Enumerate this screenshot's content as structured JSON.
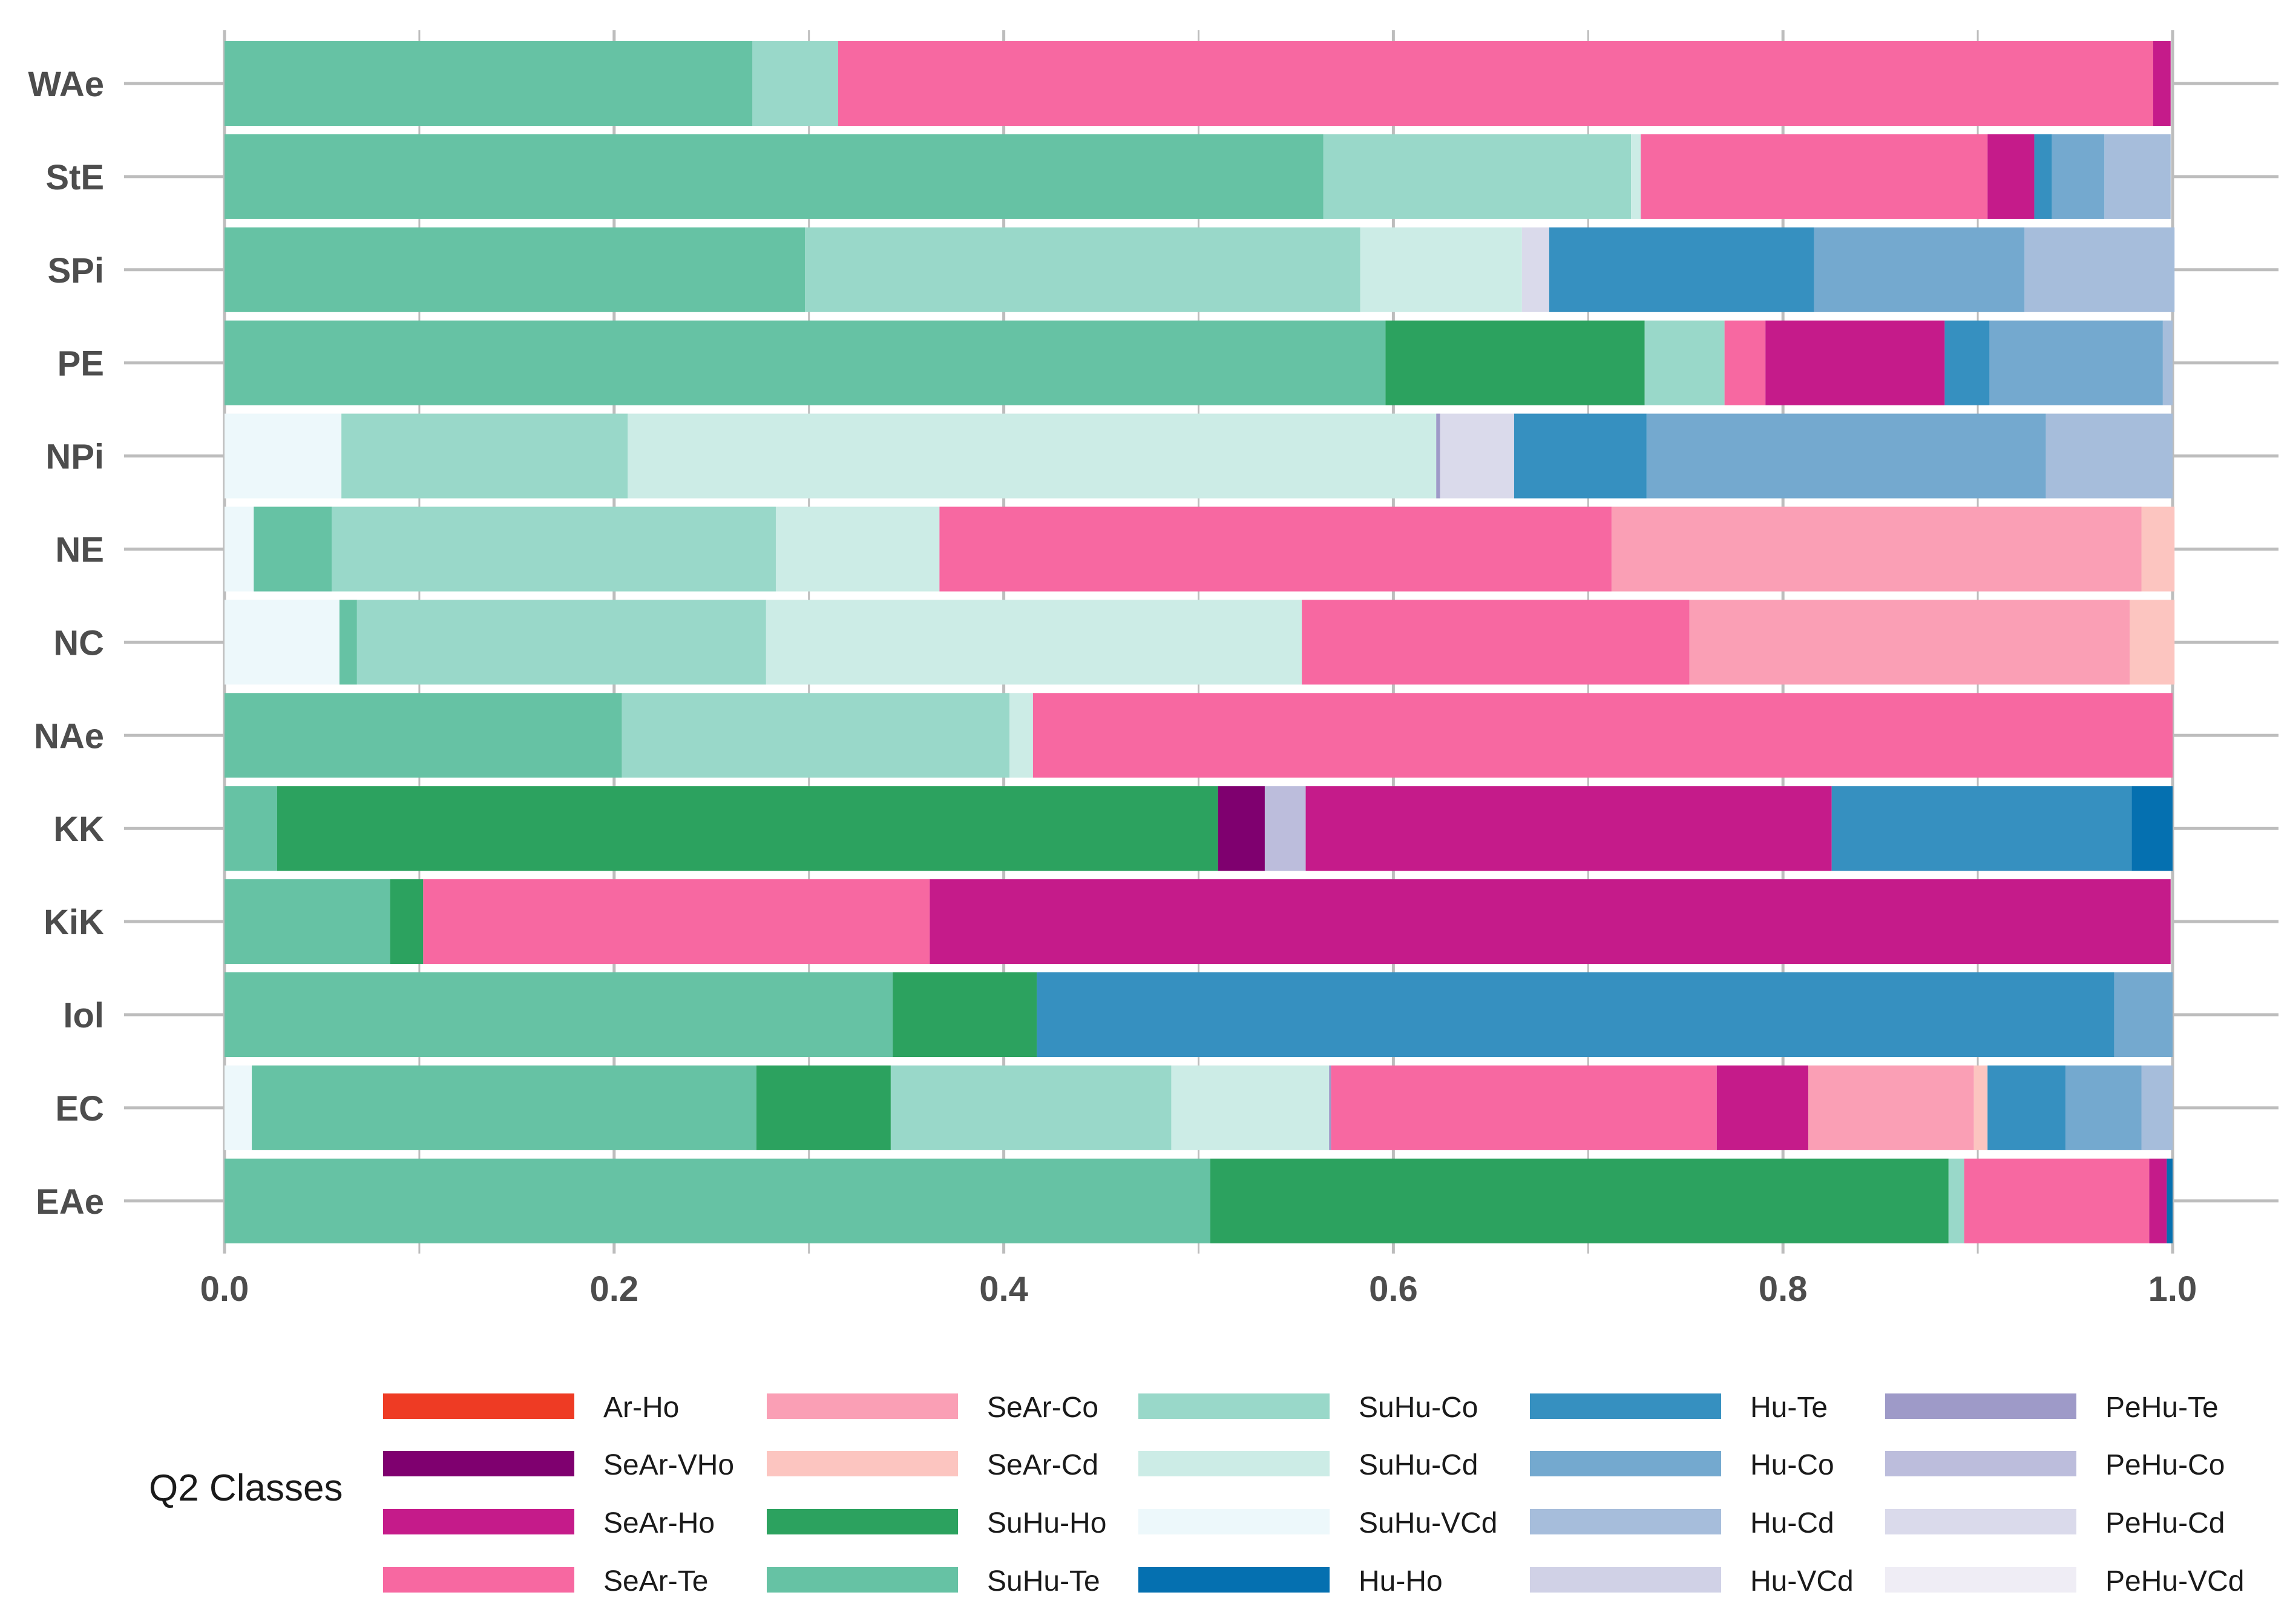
{
  "chart_data": {
    "type": "bar",
    "orientation": "horizontal",
    "stacked": "proportion",
    "categories": [
      "WAe",
      "StE",
      "SPi",
      "PE",
      "NPi",
      "NE",
      "NC",
      "NAe",
      "KK",
      "KiK",
      "Iol",
      "EC",
      "EAe"
    ],
    "xlim": [
      0,
      1
    ],
    "x_ticks": [
      "0.0",
      "0.2",
      "0.4",
      "0.6",
      "0.8",
      "1.0"
    ],
    "grid": "vertical major and minor",
    "legend": {
      "title": "Q2 Classes",
      "position": "bottom"
    },
    "series": [
      {
        "name": "Ar-Ho",
        "color": "#ee3b24",
        "values": [
          0,
          0,
          0,
          0,
          0,
          0,
          0,
          0,
          0,
          0,
          0,
          0,
          0
        ]
      },
      {
        "name": "SeAr-VHo",
        "color": "#7f006f",
        "values": [
          0,
          0,
          0,
          0,
          0,
          0,
          0,
          0,
          0.024,
          0,
          0,
          0,
          0
        ]
      },
      {
        "name": "SeAr-Ho",
        "color": "#c51b8a",
        "values": [
          0.009,
          0.024,
          0,
          0.092,
          0,
          0,
          0,
          0,
          0.27,
          0.637,
          0,
          0.047,
          0.009
        ]
      },
      {
        "name": "SeAr-Te",
        "color": "#f768a1",
        "values": [
          0.675,
          0.178,
          0,
          0.021,
          0,
          0.345,
          0.199,
          0.585,
          0,
          0.26,
          0,
          0.198,
          0.095
        ]
      },
      {
        "name": "SeAr-Co",
        "color": "#fa9fb5",
        "values": [
          0,
          0,
          0,
          0,
          0,
          0.272,
          0.226,
          0,
          0,
          0,
          0,
          0.085,
          0
        ]
      },
      {
        "name": "SeAr-Cd",
        "color": "#fcc5c0",
        "values": [
          0,
          0,
          0,
          0,
          0,
          0.017,
          0.023,
          0,
          0,
          0,
          0,
          0.007,
          0
        ]
      },
      {
        "name": "SuHu-Ho",
        "color": "#2ca25f",
        "values": [
          0,
          0,
          0,
          0.133,
          0,
          0,
          0,
          0,
          0.483,
          0.017,
          0.074,
          0.069,
          0.379
        ]
      },
      {
        "name": "SuHu-Te",
        "color": "#66c2a4",
        "values": [
          0.271,
          0.564,
          0.298,
          0.596,
          0,
          0.04,
          0.009,
          0.204,
          0.027,
          0.085,
          0.343,
          0.259,
          0.506
        ]
      },
      {
        "name": "SuHu-Co",
        "color": "#99d8c9",
        "values": [
          0.044,
          0.158,
          0.285,
          0.041,
          0.147,
          0.228,
          0.21,
          0.199,
          0,
          0,
          0,
          0.144,
          0.008
        ]
      },
      {
        "name": "SuHu-Cd",
        "color": "#ccece6",
        "values": [
          0,
          0.005,
          0.083,
          0,
          0.415,
          0.084,
          0.275,
          0.012,
          0,
          0,
          0,
          0.081,
          0
        ]
      },
      {
        "name": "SuHu-VCd",
        "color": "#edf8fb",
        "values": [
          0,
          0,
          0,
          0,
          0.06,
          0.015,
          0.059,
          0,
          0,
          0,
          0,
          0.014,
          0
        ]
      },
      {
        "name": "Hu-Ho",
        "color": "#0570b0",
        "values": [
          0,
          0,
          0,
          0,
          0,
          0,
          0,
          0,
          0.021,
          0,
          0,
          0,
          0.003
        ]
      },
      {
        "name": "Hu-Te",
        "color": "#3690c0",
        "values": [
          0,
          0.009,
          0.136,
          0.023,
          0.068,
          0,
          0,
          0,
          0.154,
          0,
          0.553,
          0.04,
          0
        ]
      },
      {
        "name": "Hu-Co",
        "color": "#74a9cf",
        "values": [
          0,
          0.027,
          0.108,
          0.089,
          0.205,
          0,
          0,
          0,
          0,
          0,
          0.03,
          0.039,
          0
        ]
      },
      {
        "name": "Hu-Cd",
        "color": "#a6bddb",
        "values": [
          0,
          0.034,
          0.077,
          0.005,
          0.065,
          0,
          0,
          0,
          0,
          0,
          0,
          0.016,
          0
        ]
      },
      {
        "name": "Hu-VCd",
        "color": "#d0d1e6",
        "values": [
          0,
          0,
          0,
          0,
          0,
          0,
          0,
          0,
          0,
          0,
          0,
          0,
          0
        ]
      },
      {
        "name": "PeHu-Te",
        "color": "#9e9ac8",
        "values": [
          0,
          0,
          0,
          0,
          0.002,
          0,
          0,
          0,
          0,
          0,
          0,
          0.001,
          0
        ]
      },
      {
        "name": "PeHu-Co",
        "color": "#bcbddc",
        "values": [
          0,
          0,
          0,
          0,
          0,
          0,
          0,
          0,
          0.021,
          0,
          0,
          0,
          0
        ]
      },
      {
        "name": "PeHu-Cd",
        "color": "#dadaeb",
        "values": [
          0,
          0,
          0.014,
          0,
          0.038,
          0,
          0,
          0,
          0,
          0,
          0,
          0,
          0
        ]
      },
      {
        "name": "PeHu-VCd",
        "color": "#efedf5",
        "values": [
          0,
          0,
          0,
          0,
          0,
          0,
          0,
          0,
          0,
          0,
          0,
          0,
          0
        ]
      }
    ],
    "stack_order": [
      "SuHu-VCd",
      "SuHu-Te",
      "SuHu-Ho",
      "SeAr-VHo",
      "SuHu-Co",
      "SuHu-Cd",
      "PeHu-Te",
      "PeHu-Co",
      "PeHu-Cd",
      "SeAr-Te",
      "SeAr-Ho",
      "SeAr-Co",
      "SeAr-Cd",
      "Hu-Te",
      "Hu-Co",
      "Hu-Cd",
      "Hu-Ho",
      "Ar-Ho",
      "Hu-VCd",
      "PeHu-VCd"
    ]
  }
}
